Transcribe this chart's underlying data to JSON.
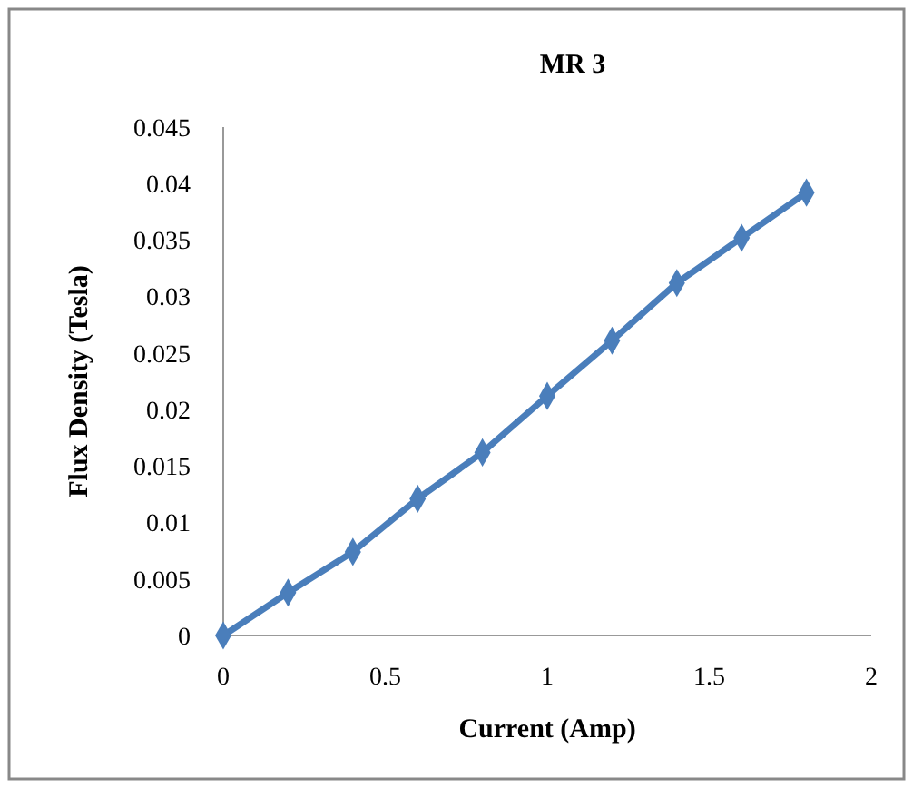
{
  "chart_data": {
    "type": "line",
    "title": "MR 3",
    "xlabel": "Current (Amp)",
    "ylabel": "Flux Density (Tesla)",
    "x": [
      0,
      0.2,
      0.4,
      0.6,
      0.8,
      1.0,
      1.2,
      1.4,
      1.6,
      1.8
    ],
    "series": [
      {
        "color": "#4a7ebb",
        "values": [
          0,
          0.0038,
          0.0074,
          0.0121,
          0.0162,
          0.0212,
          0.0261,
          0.0312,
          0.0352,
          0.0392
        ]
      }
    ],
    "xlim": [
      0,
      2
    ],
    "xticks": [
      0,
      {
        "value": 0.5,
        "label": "0.5"
      },
      1,
      {
        "value": 1.5,
        "label": "1.5"
      },
      2
    ],
    "ylim": [
      0,
      0.045
    ],
    "yticks": [
      0,
      {
        "value": 0.005,
        "label": "0.005"
      },
      {
        "value": 0.01,
        "label": "0.01"
      },
      {
        "value": 0.015,
        "label": "0.015"
      },
      {
        "value": 0.02,
        "label": "0.02"
      },
      {
        "value": 0.025,
        "label": "0.025"
      },
      {
        "value": 0.03,
        "label": "0.03"
      },
      {
        "value": 0.035,
        "label": "0.035"
      },
      {
        "value": 0.04,
        "label": "0.04"
      },
      {
        "value": 0.045,
        "label": "0.045"
      }
    ],
    "grid": false,
    "marker": "diamond",
    "line_style": "solid"
  }
}
